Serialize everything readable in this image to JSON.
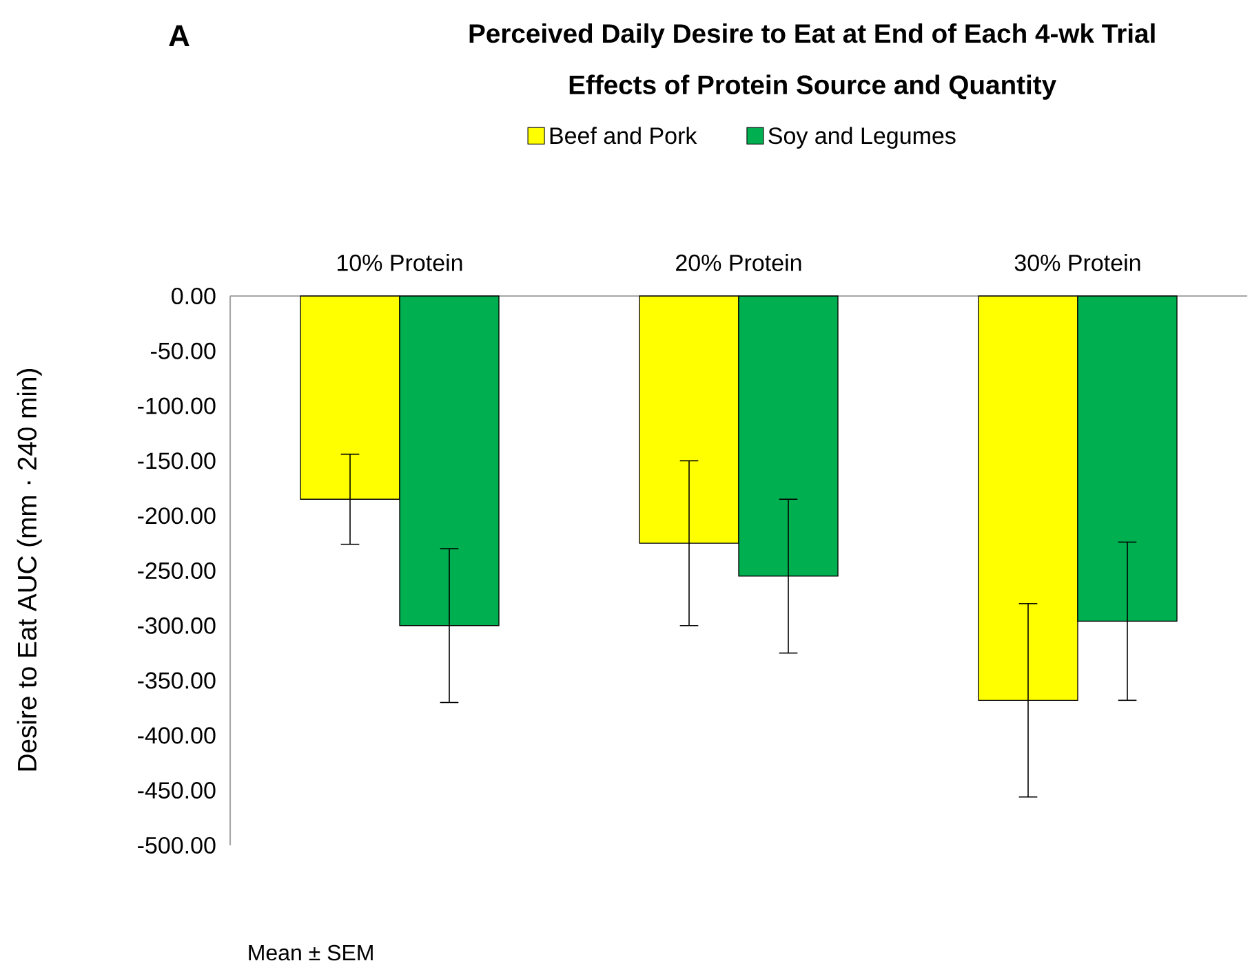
{
  "chart_data": {
    "type": "bar",
    "title": "Perceived Daily Desire to Eat at End of Each 4-wk Trial",
    "subtitle": "Effects of Protein Source and Quantity",
    "ylabel": "Desire to Eat AUC (mm · 240 min)",
    "categories": [
      "10% Protein",
      "20% Protein",
      "30% Protein"
    ],
    "series": [
      {
        "name": "Beef and Pork",
        "color": "#ffff00",
        "values": [
          -185,
          -225,
          -368
        ],
        "errors": [
          41,
          75,
          88
        ]
      },
      {
        "name": "Soy and Legumes",
        "color": "#00b050",
        "values": [
          -300,
          -255,
          -296
        ],
        "errors": [
          70,
          70,
          72
        ]
      }
    ],
    "ylim": [
      -500,
      0
    ],
    "yticks": [
      {
        "value": 0,
        "label": "0.00"
      },
      {
        "value": -50,
        "label": "-50.00"
      },
      {
        "value": -100,
        "label": "-100.00"
      },
      {
        "value": -150,
        "label": "-150.00"
      },
      {
        "value": -200,
        "label": "-200.00"
      },
      {
        "value": -250,
        "label": "-250.00"
      },
      {
        "value": -300,
        "label": "-300.00"
      },
      {
        "value": -350,
        "label": "-350.00"
      },
      {
        "value": -400,
        "label": "-400.00"
      },
      {
        "value": -450,
        "label": "-450.00"
      },
      {
        "value": -500,
        "label": "-500.00"
      }
    ],
    "legend": "top",
    "annotations": [
      "A",
      "Mean ± SEM"
    ]
  }
}
